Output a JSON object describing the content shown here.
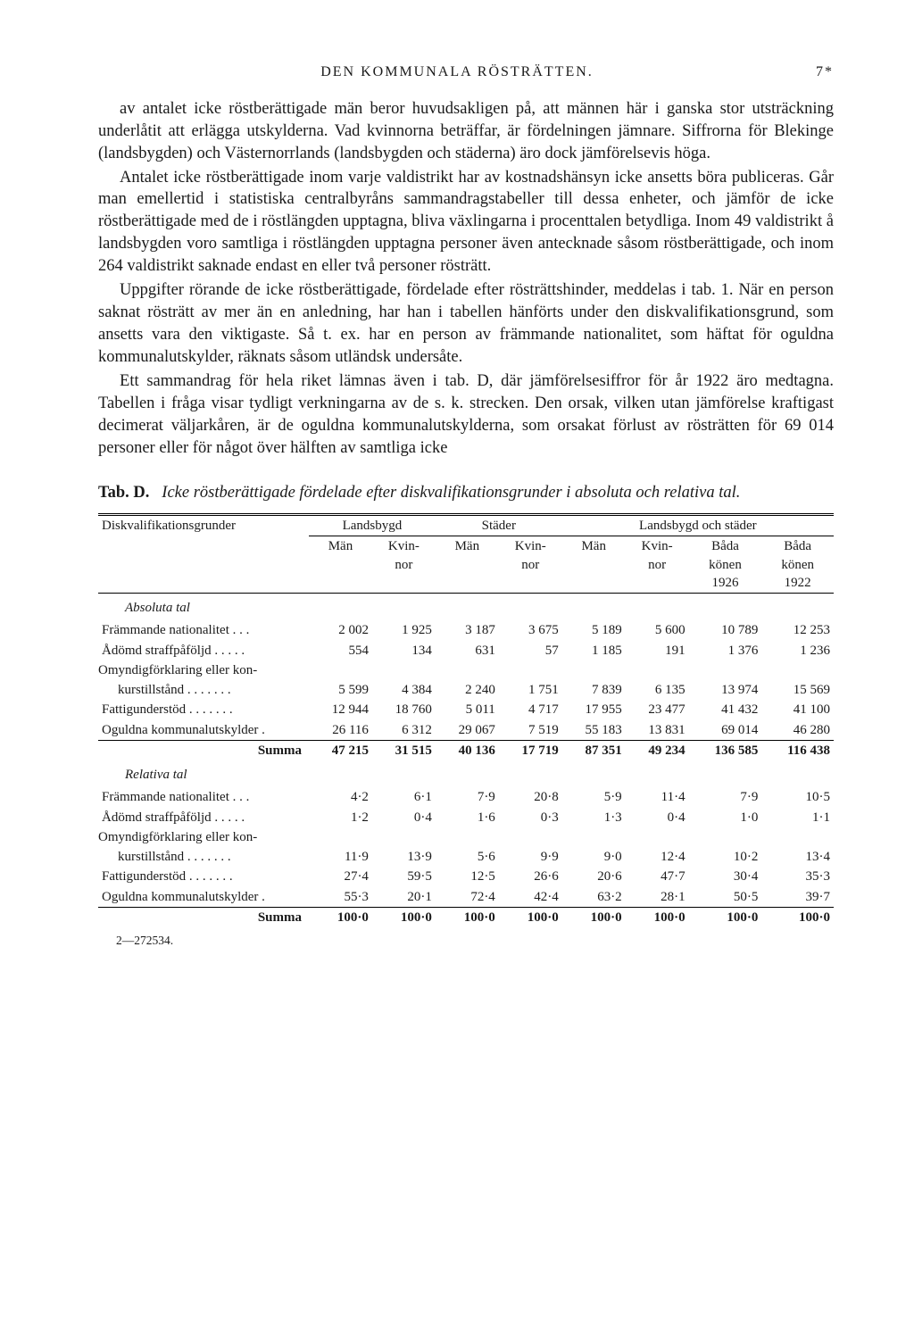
{
  "header": {
    "title": "DEN KOMMUNALA RÖSTRÄTTEN.",
    "page": "7*"
  },
  "paragraphs": [
    "av antalet icke röstberättigade män beror huvudsakligen på, att männen här i ganska stor utsträckning underlåtit att erlägga utskylderna. Vad kvinnorna beträffar, är fördelningen jämnare. Siffrorna för Blekinge (landsbygden) och Västernorrlands (landsbygden och städerna) äro dock jämförelsevis höga.",
    "Antalet icke röstberättigade inom varje valdistrikt har av kostnadshänsyn icke ansetts böra publiceras. Går man emellertid i statistiska centralbyråns sammandragstabeller till dessa enheter, och jämför de icke röstberättigade med de i röstlängden upptagna, bliva växlingarna i procenttalen betydliga. Inom 49 valdistrikt å landsbygden voro samtliga i röstlängden upptagna personer även antecknade såsom röstberättigade, och inom 264 valdistrikt saknade endast en eller två personer rösträtt.",
    "Uppgifter rörande de icke röstberättigade, fördelade efter rösträttshinder, meddelas i tab. 1. När en person saknat rösträtt av mer än en anledning, har han i tabellen hänförts under den diskvalifikationsgrund, som ansetts vara den viktigaste. Så t. ex. har en person av främmande nationalitet, som häftat för oguldna kommunalutskylder, räknats såsom utländsk undersåte.",
    "Ett sammandrag för hela riket lämnas även i tab. D, där jämförelsesiffror för år 1922 äro medtagna. Tabellen i fråga visar tydligt verkningarna av de s. k. strecken. Den orsak, vilken utan jämförelse kraftigast decimerat väljarkåren, är de oguldna kommunalutskylderna, som orsakat förlust av rösträtten för 69 014 personer eller för något över hälften av samtliga icke"
  ],
  "table": {
    "caption_label": "Tab. D.",
    "caption": "Icke röstberättigade fördelade efter diskvalifikationsgrunder i absoluta och relativa tal.",
    "col_group_headers": [
      "Landsbygd",
      "Städer",
      "Landsbygd och städer"
    ],
    "row_label_header": "Diskvalifikationsgrunder",
    "sub_headers": {
      "man": "Män",
      "kvin": "Kvin-\nnor",
      "bada26": "Båda\nkönen\n1926",
      "bada22": "Båda\nkönen\n1922"
    },
    "section_abs": "Absoluta tal",
    "section_rel": "Relativa tal",
    "sum_label": "Summa",
    "rows_abs": [
      {
        "label": "Främmande nationalitet . . .",
        "v": [
          "2 002",
          "1 925",
          "3 187",
          "3 675",
          "5 189",
          "5 600",
          "10 789",
          "12 253"
        ]
      },
      {
        "label": "Ådömd straffpåföljd . . . . .",
        "v": [
          "554",
          "134",
          "631",
          "57",
          "1 185",
          "191",
          "1 376",
          "1 236"
        ]
      },
      {
        "label": "Omyndigförklaring eller kon-\nkurstillstånd . . . . . . .",
        "v": [
          "5 599",
          "4 384",
          "2 240",
          "1 751",
          "7 839",
          "6 135",
          "13 974",
          "15 569"
        ]
      },
      {
        "label": "Fattigunderstöd . . . . . . .",
        "v": [
          "12 944",
          "18 760",
          "5 011",
          "4 717",
          "17 955",
          "23 477",
          "41 432",
          "41 100"
        ]
      },
      {
        "label": "Oguldna kommunalutskylder .",
        "v": [
          "26 116",
          "6 312",
          "29 067",
          "7 519",
          "55 183",
          "13 831",
          "69 014",
          "46 280"
        ]
      }
    ],
    "sum_abs": [
      "47 215",
      "31 515",
      "40 136",
      "17 719",
      "87 351",
      "49 234",
      "136 585",
      "116 438"
    ],
    "rows_rel": [
      {
        "label": "Främmande nationalitet . . .",
        "v": [
          "4·2",
          "6·1",
          "7·9",
          "20·8",
          "5·9",
          "11·4",
          "7·9",
          "10·5"
        ]
      },
      {
        "label": "Ådömd straffpåföljd . . . . .",
        "v": [
          "1·2",
          "0·4",
          "1·6",
          "0·3",
          "1·3",
          "0·4",
          "1·0",
          "1·1"
        ]
      },
      {
        "label": "Omyndigförklaring eller kon-\nkurstillstånd . . . . . . .",
        "v": [
          "11·9",
          "13·9",
          "5·6",
          "9·9",
          "9·0",
          "12·4",
          "10·2",
          "13·4"
        ]
      },
      {
        "label": "Fattigunderstöd . . . . . . .",
        "v": [
          "27·4",
          "59·5",
          "12·5",
          "26·6",
          "20·6",
          "47·7",
          "30·4",
          "35·3"
        ]
      },
      {
        "label": "Oguldna kommunalutskylder .",
        "v": [
          "55·3",
          "20·1",
          "72·4",
          "42·4",
          "63·2",
          "28·1",
          "50·5",
          "39·7"
        ]
      }
    ],
    "sum_rel": [
      "100·0",
      "100·0",
      "100·0",
      "100·0",
      "100·0",
      "100·0",
      "100·0",
      "100·0"
    ]
  },
  "footer": "2—272534."
}
